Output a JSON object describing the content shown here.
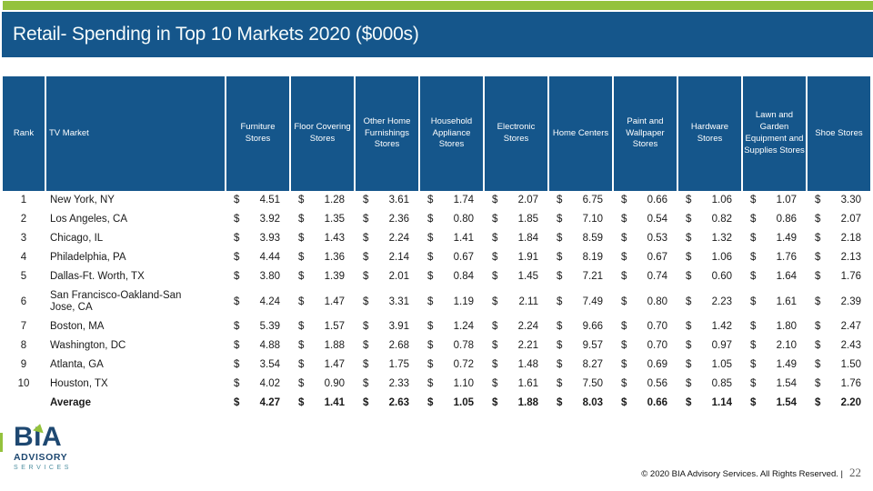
{
  "title": "Retail- Spending in Top 10 Markets 2020 ($000s)",
  "colors": {
    "accent_green": "#94C23D",
    "header_blue": "#15568B",
    "logo_navy": "#1E4871",
    "logo_teal": "#4E8FA0"
  },
  "table": {
    "columns": [
      "Rank",
      "TV Market",
      "Furniture Stores",
      "Floor Covering Stores",
      "Other Home Furnishings Stores",
      "Household Appliance Stores",
      "Electronic Stores",
      "Home Centers",
      "Paint and Wallpaper Stores",
      "Hardware Stores",
      "Lawn and Garden Equipment and Supplies Stores",
      "Shoe Stores"
    ],
    "currency": "$",
    "rows": [
      {
        "rank": "1",
        "market": "New York, NY",
        "values": [
          "4.51",
          "1.28",
          "3.61",
          "1.74",
          "2.07",
          "6.75",
          "0.66",
          "1.06",
          "1.07",
          "3.30"
        ],
        "bold": false
      },
      {
        "rank": "2",
        "market": "Los Angeles, CA",
        "values": [
          "3.92",
          "1.35",
          "2.36",
          "0.80",
          "1.85",
          "7.10",
          "0.54",
          "0.82",
          "0.86",
          "2.07"
        ],
        "bold": false
      },
      {
        "rank": "3",
        "market": "Chicago, IL",
        "values": [
          "3.93",
          "1.43",
          "2.24",
          "1.41",
          "1.84",
          "8.59",
          "0.53",
          "1.32",
          "1.49",
          "2.18"
        ],
        "bold": false
      },
      {
        "rank": "4",
        "market": "Philadelphia, PA",
        "values": [
          "4.44",
          "1.36",
          "2.14",
          "0.67",
          "1.91",
          "8.19",
          "0.67",
          "1.06",
          "1.76",
          "2.13"
        ],
        "bold": false
      },
      {
        "rank": "5",
        "market": "Dallas-Ft. Worth, TX",
        "values": [
          "3.80",
          "1.39",
          "2.01",
          "0.84",
          "1.45",
          "7.21",
          "0.74",
          "0.60",
          "1.64",
          "1.76"
        ],
        "bold": false
      },
      {
        "rank": "6",
        "market": "San Francisco-Oakland-San Jose, CA",
        "values": [
          "4.24",
          "1.47",
          "3.31",
          "1.19",
          "2.11",
          "7.49",
          "0.80",
          "2.23",
          "1.61",
          "2.39"
        ],
        "bold": false
      },
      {
        "rank": "7",
        "market": "Boston, MA",
        "values": [
          "5.39",
          "1.57",
          "3.91",
          "1.24",
          "2.24",
          "9.66",
          "0.70",
          "1.42",
          "1.80",
          "2.47"
        ],
        "bold": false
      },
      {
        "rank": "8",
        "market": "Washington, DC",
        "values": [
          "4.88",
          "1.88",
          "2.68",
          "0.78",
          "2.21",
          "9.57",
          "0.70",
          "0.97",
          "2.10",
          "2.43"
        ],
        "bold": false
      },
      {
        "rank": "9",
        "market": "Atlanta, GA",
        "values": [
          "3.54",
          "1.47",
          "1.75",
          "0.72",
          "1.48",
          "8.27",
          "0.69",
          "1.05",
          "1.49",
          "1.50"
        ],
        "bold": false
      },
      {
        "rank": "10",
        "market": "Houston, TX",
        "values": [
          "4.02",
          "0.90",
          "2.33",
          "1.10",
          "1.61",
          "7.50",
          "0.56",
          "0.85",
          "1.54",
          "1.76"
        ],
        "bold": false
      },
      {
        "rank": "",
        "market": "Average",
        "values": [
          "4.27",
          "1.41",
          "2.63",
          "1.05",
          "1.88",
          "8.03",
          "0.66",
          "1.14",
          "1.54",
          "2.20"
        ],
        "bold": true
      }
    ]
  },
  "footer": {
    "logo_line1": "BIA",
    "logo_line2": "ADVISORY",
    "logo_line3": "SERVICES",
    "copyright": "© 2020 BIA Advisory Services. All Rights Reserved. |",
    "page_number": "22"
  }
}
